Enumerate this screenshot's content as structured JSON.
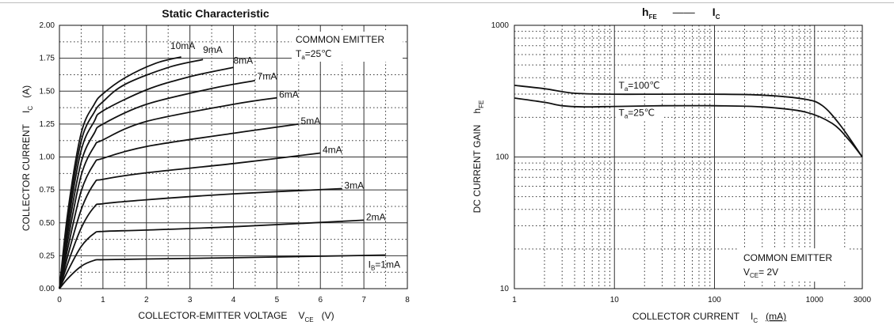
{
  "chart_data": [
    {
      "type": "line",
      "title": "Static Characteristic",
      "xlabel": "COLLECTOR-EMITTER VOLTAGE",
      "xlabel_symbol": "V",
      "xlabel_sub": "CE",
      "xlabel_unit": "(V)",
      "ylabel": "COLLECTOR CURRENT",
      "ylabel_symbol": "I",
      "ylabel_sub": "C",
      "ylabel_unit": "(A)",
      "xlim": [
        0,
        8
      ],
      "ylim": [
        0,
        2.0
      ],
      "xticks": [
        "0",
        "1",
        "2",
        "3",
        "4",
        "5",
        "6",
        "7",
        "8"
      ],
      "yticks": [
        "0.00",
        "0.25",
        "0.50",
        "0.75",
        "1.00",
        "1.25",
        "1.50",
        "1.75",
        "2.00"
      ],
      "grid": true,
      "annotation": {
        "line1": "COMMON EMITTER",
        "temp_symbol": "T",
        "temp_sub": "a",
        "temp_value": "=25℃"
      },
      "series": [
        {
          "name": "I",
          "label_sub": "B",
          "label_rest": "=1mA",
          "label_at": [
            7.1,
            0.16
          ],
          "x": [
            0,
            0.2,
            0.5,
            0.8,
            1.0,
            2.0,
            4.0,
            7.5
          ],
          "y": [
            0,
            0.08,
            0.17,
            0.215,
            0.22,
            0.225,
            0.235,
            0.255
          ]
        },
        {
          "name": "2mA",
          "label_at": [
            7.05,
            0.52
          ],
          "x": [
            0,
            0.2,
            0.5,
            0.8,
            1.0,
            2.0,
            4.0,
            7.0
          ],
          "y": [
            0,
            0.14,
            0.32,
            0.42,
            0.435,
            0.445,
            0.47,
            0.52
          ]
        },
        {
          "name": "3mA",
          "label_at": [
            6.55,
            0.76
          ],
          "x": [
            0,
            0.2,
            0.5,
            0.8,
            1.0,
            2.0,
            4.0,
            6.5
          ],
          "y": [
            0,
            0.2,
            0.46,
            0.62,
            0.645,
            0.675,
            0.72,
            0.76
          ]
        },
        {
          "name": "4mA",
          "label_at": [
            6.05,
            1.03
          ],
          "x": [
            0,
            0.2,
            0.5,
            0.8,
            1.0,
            2.0,
            4.0,
            6.0
          ],
          "y": [
            0,
            0.26,
            0.6,
            0.8,
            0.83,
            0.88,
            0.95,
            1.03
          ]
        },
        {
          "name": "5mA",
          "label_at": [
            5.55,
            1.25
          ],
          "x": [
            0,
            0.2,
            0.5,
            0.8,
            1.0,
            2.0,
            4.0,
            5.5
          ],
          "y": [
            0,
            0.32,
            0.74,
            0.95,
            0.99,
            1.08,
            1.18,
            1.25
          ]
        },
        {
          "name": "6mA",
          "label_at": [
            5.05,
            1.45
          ],
          "x": [
            0,
            0.2,
            0.5,
            0.8,
            1.0,
            2.0,
            4.0,
            5.0
          ],
          "y": [
            0,
            0.38,
            0.86,
            1.08,
            1.13,
            1.27,
            1.4,
            1.45
          ]
        },
        {
          "name": "7mA",
          "label_at": [
            4.55,
            1.59
          ],
          "x": [
            0,
            0.2,
            0.5,
            0.8,
            1.0,
            2.0,
            3.5,
            4.5
          ],
          "y": [
            0,
            0.44,
            0.96,
            1.18,
            1.25,
            1.4,
            1.52,
            1.58
          ]
        },
        {
          "name": "8mA",
          "label_at": [
            4.0,
            1.71
          ],
          "x": [
            0,
            0.2,
            0.5,
            0.8,
            1.0,
            2.0,
            3.0,
            4.0
          ],
          "y": [
            0,
            0.5,
            1.05,
            1.27,
            1.35,
            1.51,
            1.61,
            1.68
          ]
        },
        {
          "name": "9mA",
          "label_at": [
            3.3,
            1.79
          ],
          "x": [
            0,
            0.2,
            0.5,
            0.8,
            1.0,
            1.5,
            2.5,
            3.3
          ],
          "y": [
            0,
            0.55,
            1.12,
            1.34,
            1.42,
            1.55,
            1.68,
            1.74
          ]
        },
        {
          "name": "10mA",
          "label_at": [
            2.55,
            1.82
          ],
          "x": [
            0,
            0.2,
            0.5,
            0.8,
            1.0,
            1.5,
            2.2,
            2.8
          ],
          "y": [
            0,
            0.6,
            1.18,
            1.4,
            1.48,
            1.6,
            1.71,
            1.76
          ]
        }
      ]
    },
    {
      "type": "line",
      "title_left": "h",
      "title_left_sub": "FE",
      "title_sep": "——",
      "title_right": "I",
      "title_right_sub": "C",
      "xlabel": "COLLECTOR CURRENT",
      "xlabel_symbol": "I",
      "xlabel_sub": "C",
      "xlabel_unit": "(mA)",
      "ylabel": "DC CURRENT GAIN",
      "ylabel_symbol": "h",
      "ylabel_sub": "FE",
      "xscale": "log",
      "yscale": "log",
      "xlim": [
        1,
        3000
      ],
      "ylim": [
        10,
        1000
      ],
      "xticks": [
        "1",
        "10",
        "100",
        "1000",
        "3000"
      ],
      "yticks": [
        "10",
        "100",
        "1000"
      ],
      "grid": true,
      "annotation": {
        "line1": "COMMON EMITTER",
        "v_symbol": "V",
        "v_sub": "CE",
        "v_value": "= 2V"
      },
      "series": [
        {
          "name": "T",
          "label_sub": "a",
          "label_rest": "=100℃",
          "label_at": [
            11,
            330
          ],
          "x": [
            1,
            2,
            4,
            10,
            30,
            100,
            300,
            800,
            1200,
            1800,
            3000
          ],
          "y": [
            350,
            330,
            305,
            300,
            300,
            300,
            295,
            275,
            245,
            175,
            100
          ]
        },
        {
          "name": "T",
          "label_sub": "a",
          "label_rest": "=25℃",
          "label_at": [
            11,
            205
          ],
          "x": [
            1,
            2,
            3,
            5,
            10,
            30,
            100,
            300,
            800,
            1500,
            2200,
            3000
          ],
          "y": [
            280,
            260,
            245,
            240,
            242,
            245,
            245,
            240,
            220,
            180,
            135,
            100
          ]
        }
      ]
    }
  ]
}
